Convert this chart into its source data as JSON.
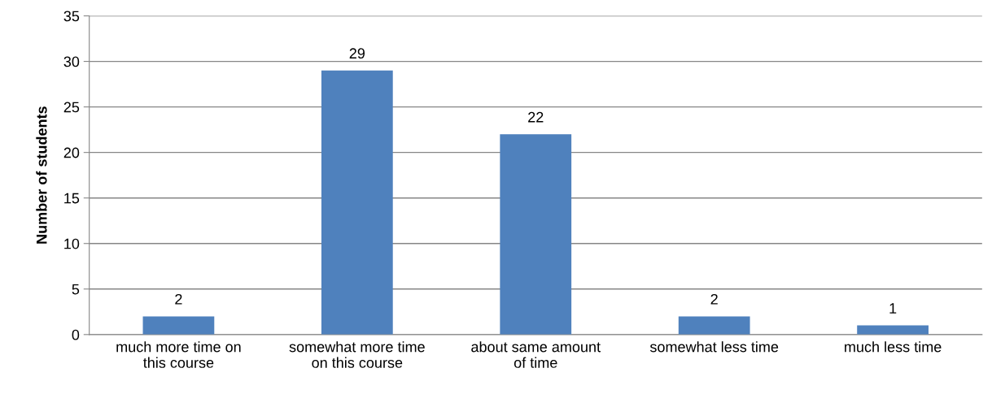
{
  "chart_data": {
    "type": "bar",
    "ylabel": "Number of students",
    "categories": [
      "much more time on this course",
      "somewhat more time on this course",
      "about same amount of time",
      "somewhat less time",
      "much less time"
    ],
    "values": [
      2,
      29,
      22,
      2,
      1
    ],
    "color": "#4f81bd",
    "ylim": [
      0,
      35
    ],
    "yticks": [
      0,
      5,
      10,
      15,
      20,
      25,
      30,
      35
    ],
    "grid": "y",
    "data_labels": true,
    "legend": false
  }
}
